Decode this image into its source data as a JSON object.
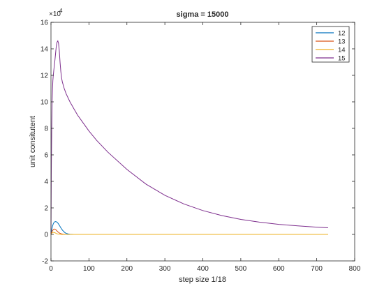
{
  "chart_data": {
    "type": "line",
    "title": "sigma = 15000",
    "xlabel": "step size 1/18",
    "ylabel": "unit consitutent",
    "xlim": [
      0,
      800
    ],
    "ylim": [
      -2,
      16
    ],
    "y_exponent_label": "×10",
    "y_exponent_power": "4",
    "xticks": [
      0,
      100,
      200,
      300,
      400,
      500,
      600,
      700,
      800
    ],
    "yticks": [
      -2,
      0,
      2,
      4,
      6,
      8,
      10,
      12,
      14,
      16
    ],
    "grid": false,
    "legend_position": "top-right",
    "series": [
      {
        "name": "12",
        "color": "#0072BD",
        "x": [
          0,
          2,
          4,
          6,
          8,
          10,
          12,
          14,
          16,
          18,
          20,
          22,
          24,
          26,
          28,
          30,
          34,
          38,
          42,
          46,
          50,
          60,
          80,
          120,
          200,
          300,
          400,
          500,
          600,
          730
        ],
        "y": [
          0,
          0.35,
          0.62,
          0.8,
          0.9,
          0.95,
          0.97,
          0.96,
          0.92,
          0.86,
          0.78,
          0.69,
          0.6,
          0.5,
          0.41,
          0.33,
          0.2,
          0.11,
          0.06,
          0.03,
          0.01,
          0,
          0,
          0,
          0,
          0,
          0,
          0,
          0,
          0
        ]
      },
      {
        "name": "13",
        "color": "#D95319",
        "x": [
          0,
          2,
          4,
          6,
          8,
          10,
          12,
          14,
          16,
          18,
          20,
          22,
          24,
          28,
          32,
          36,
          40,
          50,
          80,
          200,
          400,
          730
        ],
        "y": [
          0,
          0.15,
          0.28,
          0.36,
          0.4,
          0.4,
          0.37,
          0.32,
          0.26,
          0.2,
          0.15,
          0.11,
          0.08,
          0.04,
          0.02,
          0.01,
          0,
          0,
          0,
          0,
          0,
          0
        ]
      },
      {
        "name": "14",
        "color": "#EDB120",
        "x": [
          0,
          2,
          4,
          6,
          8,
          10,
          12,
          14,
          16,
          18,
          20,
          24,
          28,
          32,
          40,
          60,
          200,
          400,
          730
        ],
        "y": [
          0,
          0.08,
          0.14,
          0.16,
          0.15,
          0.13,
          0.1,
          0.07,
          0.05,
          0.03,
          0.02,
          0.01,
          0,
          0,
          0,
          0,
          0,
          0,
          0
        ]
      },
      {
        "name": "15",
        "color": "#7E2F8E",
        "x": [
          0,
          1,
          2,
          3,
          4,
          5,
          6,
          8,
          10,
          12,
          14,
          16,
          18,
          20,
          22,
          24,
          26,
          28,
          30,
          35,
          40,
          50,
          60,
          70,
          80,
          100,
          120,
          150,
          200,
          250,
          300,
          350,
          400,
          450,
          500,
          550,
          600,
          650,
          700,
          730
        ],
        "y": [
          0,
          5.0,
          8.0,
          10.0,
          11.0,
          11.6,
          12.0,
          12.5,
          13.0,
          13.6,
          14.2,
          14.5,
          14.6,
          14.4,
          13.8,
          13.0,
          12.3,
          11.8,
          11.5,
          11.0,
          10.6,
          10.0,
          9.5,
          9.0,
          8.6,
          7.8,
          7.1,
          6.2,
          4.9,
          3.8,
          2.95,
          2.3,
          1.8,
          1.42,
          1.13,
          0.92,
          0.76,
          0.64,
          0.55,
          0.5
        ]
      }
    ]
  }
}
